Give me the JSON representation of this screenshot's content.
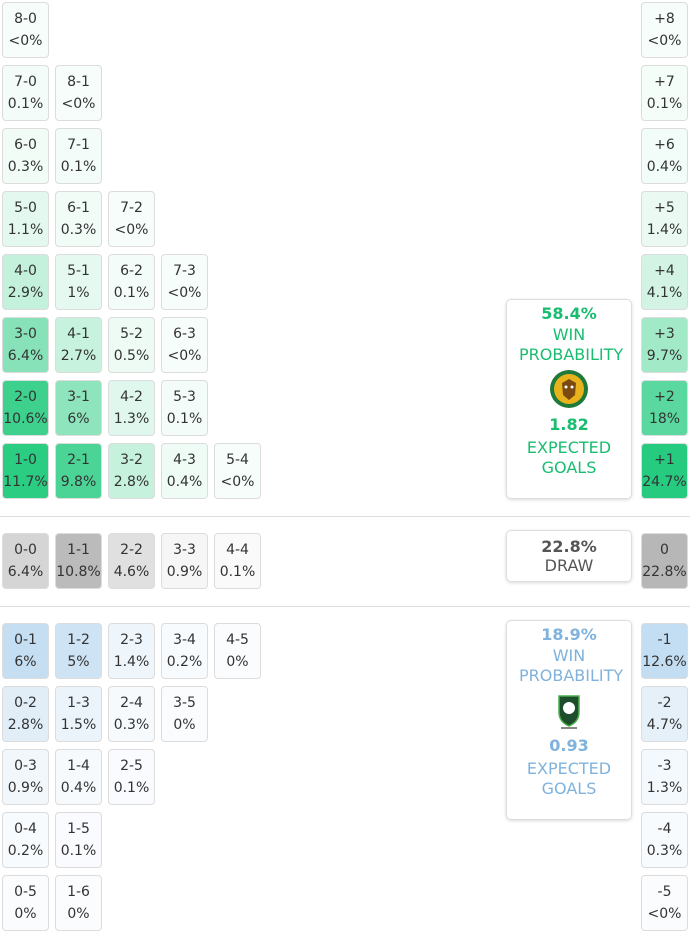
{
  "home": {
    "rows": [
      [
        {
          "score": "8-0",
          "prob": "<0%"
        }
      ],
      [
        {
          "score": "7-0",
          "prob": "0.1%"
        },
        {
          "score": "8-1",
          "prob": "<0%"
        }
      ],
      [
        {
          "score": "6-0",
          "prob": "0.3%"
        },
        {
          "score": "7-1",
          "prob": "0.1%"
        }
      ],
      [
        {
          "score": "5-0",
          "prob": "1.1%"
        },
        {
          "score": "6-1",
          "prob": "0.3%"
        },
        {
          "score": "7-2",
          "prob": "<0%"
        }
      ],
      [
        {
          "score": "4-0",
          "prob": "2.9%"
        },
        {
          "score": "5-1",
          "prob": "1%"
        },
        {
          "score": "6-2",
          "prob": "0.1%"
        },
        {
          "score": "7-3",
          "prob": "<0%"
        }
      ],
      [
        {
          "score": "3-0",
          "prob": "6.4%"
        },
        {
          "score": "4-1",
          "prob": "2.7%"
        },
        {
          "score": "5-2",
          "prob": "0.5%"
        },
        {
          "score": "6-3",
          "prob": "<0%"
        }
      ],
      [
        {
          "score": "2-0",
          "prob": "10.6%"
        },
        {
          "score": "3-1",
          "prob": "6%"
        },
        {
          "score": "4-2",
          "prob": "1.3%"
        },
        {
          "score": "5-3",
          "prob": "0.1%"
        }
      ],
      [
        {
          "score": "1-0",
          "prob": "11.7%"
        },
        {
          "score": "2-1",
          "prob": "9.8%"
        },
        {
          "score": "3-2",
          "prob": "2.8%"
        },
        {
          "score": "4-3",
          "prob": "0.4%"
        },
        {
          "score": "5-4",
          "prob": "<0%"
        }
      ]
    ],
    "margins": [
      {
        "label": "+8",
        "prob": "<0%"
      },
      {
        "label": "+7",
        "prob": "0.1%"
      },
      {
        "label": "+6",
        "prob": "0.4%"
      },
      {
        "label": "+5",
        "prob": "1.4%"
      },
      {
        "label": "+4",
        "prob": "4.1%"
      },
      {
        "label": "+3",
        "prob": "9.7%"
      },
      {
        "label": "+2",
        "prob": "18%"
      },
      {
        "label": "+1",
        "prob": "24.7%"
      }
    ],
    "summary": {
      "win_probability": "58.4%",
      "win_label": "WIN PROBABILITY",
      "expected_goals": "1.82",
      "xg_label": "EXPECTED GOALS"
    }
  },
  "draw": {
    "rows": [
      [
        {
          "score": "0-0",
          "prob": "6.4%"
        },
        {
          "score": "1-1",
          "prob": "10.8%"
        },
        {
          "score": "2-2",
          "prob": "4.6%"
        },
        {
          "score": "3-3",
          "prob": "0.9%"
        },
        {
          "score": "4-4",
          "prob": "0.1%"
        }
      ]
    ],
    "margins": [
      {
        "label": "0",
        "prob": "22.8%"
      }
    ],
    "summary": {
      "probability": "22.8%",
      "label": "DRAW"
    }
  },
  "away": {
    "rows": [
      [
        {
          "score": "0-1",
          "prob": "6%"
        },
        {
          "score": "1-2",
          "prob": "5%"
        },
        {
          "score": "2-3",
          "prob": "1.4%"
        },
        {
          "score": "3-4",
          "prob": "0.2%"
        },
        {
          "score": "4-5",
          "prob": "0%"
        }
      ],
      [
        {
          "score": "0-2",
          "prob": "2.8%"
        },
        {
          "score": "1-3",
          "prob": "1.5%"
        },
        {
          "score": "2-4",
          "prob": "0.3%"
        },
        {
          "score": "3-5",
          "prob": "0%"
        }
      ],
      [
        {
          "score": "0-3",
          "prob": "0.9%"
        },
        {
          "score": "1-4",
          "prob": "0.4%"
        },
        {
          "score": "2-5",
          "prob": "0.1%"
        }
      ],
      [
        {
          "score": "0-4",
          "prob": "0.2%"
        },
        {
          "score": "1-5",
          "prob": "0.1%"
        }
      ],
      [
        {
          "score": "0-5",
          "prob": "0%"
        },
        {
          "score": "1-6",
          "prob": "0%"
        }
      ]
    ],
    "margins": [
      {
        "label": "-1",
        "prob": "12.6%"
      },
      {
        "label": "-2",
        "prob": "4.7%"
      },
      {
        "label": "-3",
        "prob": "1.3%"
      },
      {
        "label": "-4",
        "prob": "0.3%"
      },
      {
        "label": "-5",
        "prob": "<0%"
      }
    ],
    "summary": {
      "win_probability": "18.9%",
      "win_label": "WIN PROBABILITY",
      "expected_goals": "0.93",
      "xg_label": "EXPECTED GOALS"
    }
  }
}
